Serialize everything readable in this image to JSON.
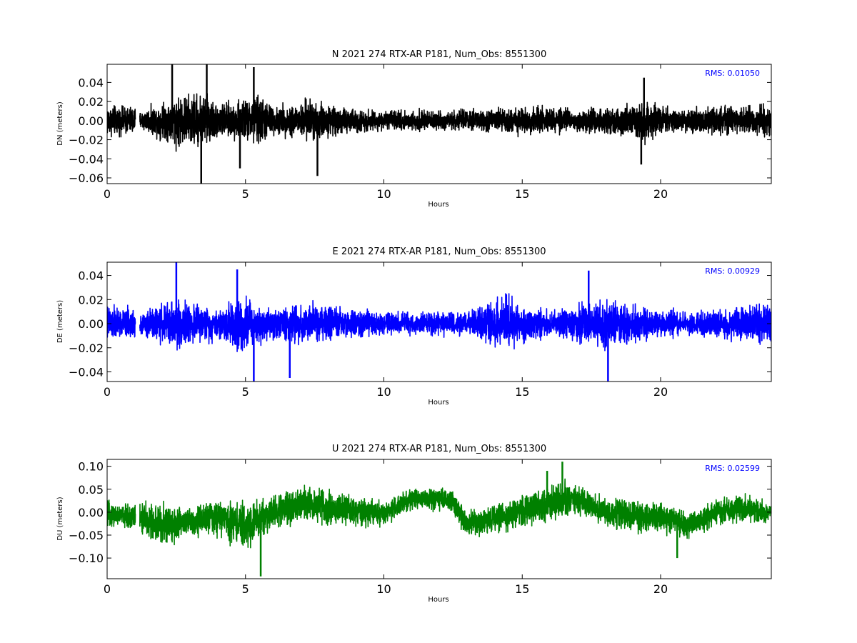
{
  "chart_data": [
    {
      "type": "line",
      "title": "N 2021 274 RTX-AR  P181, Num_Obs: 8551300",
      "xlabel": "Hours",
      "ylabel": "DN (meters)",
      "xlim": [
        0,
        24
      ],
      "ylim": [
        -0.066,
        0.059
      ],
      "xticks": [
        0,
        5,
        10,
        15,
        20
      ],
      "yticks": [
        -0.06,
        -0.04,
        -0.02,
        0.0,
        0.02,
        0.04
      ],
      "ytick_labels": [
        "−0.06",
        "−0.04",
        "−0.02",
        "0.00",
        "0.02",
        "0.04"
      ],
      "grid": false,
      "legend": "none",
      "color": "#000000",
      "annotation": "RMS:  0.01050",
      "annotation_color": "#0000ff",
      "gap": [
        1.02,
        1.18
      ],
      "amplitude_envelope": {
        "x": [
          0,
          0.5,
          1.0,
          1.2,
          2.0,
          2.5,
          3.0,
          3.5,
          4.0,
          4.5,
          5.0,
          5.5,
          6.0,
          7.0,
          7.5,
          8.0,
          9.0,
          10.0,
          11.0,
          12.0,
          13.0,
          14.0,
          15.0,
          16.0,
          17.0,
          18.0,
          19.0,
          19.5,
          20.0,
          21.0,
          22.0,
          23.0,
          24.0
        ],
        "y": [
          0.022,
          0.018,
          0.02,
          0.012,
          0.024,
          0.035,
          0.034,
          0.038,
          0.022,
          0.024,
          0.028,
          0.036,
          0.018,
          0.024,
          0.032,
          0.02,
          0.016,
          0.012,
          0.014,
          0.012,
          0.014,
          0.016,
          0.018,
          0.018,
          0.014,
          0.018,
          0.02,
          0.026,
          0.018,
          0.016,
          0.018,
          0.02,
          0.02
        ]
      },
      "extremes": [
        [
          2.35,
          0.06
        ],
        [
          3.4,
          -0.066
        ],
        [
          3.6,
          0.06
        ],
        [
          4.8,
          -0.05
        ],
        [
          5.3,
          0.056
        ],
        [
          7.6,
          -0.058
        ],
        [
          19.3,
          -0.046
        ],
        [
          19.4,
          0.045
        ]
      ]
    },
    {
      "type": "line",
      "title": "E 2021 274 RTX-AR  P181, Num_Obs: 8551300",
      "xlabel": "Hours",
      "ylabel": "DE (meters)",
      "xlim": [
        0,
        24
      ],
      "ylim": [
        -0.048,
        0.051
      ],
      "xticks": [
        0,
        5,
        10,
        15,
        20
      ],
      "yticks": [
        -0.04,
        -0.02,
        0.0,
        0.02,
        0.04
      ],
      "ytick_labels": [
        "−0.04",
        "−0.02",
        "0.00",
        "0.02",
        "0.04"
      ],
      "grid": false,
      "legend": "none",
      "color": "#0000ff",
      "annotation": "RMS:  0.00929",
      "annotation_color": "#0000ff",
      "gap": [
        1.02,
        1.18
      ],
      "amplitude_envelope": {
        "x": [
          0,
          0.5,
          1.0,
          1.2,
          2.0,
          2.5,
          3.0,
          3.5,
          4.0,
          4.5,
          5.0,
          5.5,
          6.0,
          7.0,
          8.0,
          9.0,
          10.0,
          11.0,
          12.0,
          13.0,
          14.0,
          14.5,
          15.0,
          16.0,
          17.0,
          18.0,
          19.0,
          20.0,
          21.0,
          22.0,
          23.0,
          24.0
        ],
        "y": [
          0.02,
          0.016,
          0.016,
          0.012,
          0.02,
          0.028,
          0.02,
          0.018,
          0.016,
          0.026,
          0.028,
          0.02,
          0.016,
          0.022,
          0.018,
          0.016,
          0.012,
          0.012,
          0.012,
          0.012,
          0.024,
          0.028,
          0.018,
          0.014,
          0.022,
          0.026,
          0.018,
          0.014,
          0.012,
          0.014,
          0.018,
          0.02
        ]
      },
      "extremes": [
        [
          2.5,
          0.052
        ],
        [
          4.7,
          0.045
        ],
        [
          5.3,
          -0.048
        ],
        [
          6.6,
          -0.045
        ],
        [
          17.4,
          0.044
        ],
        [
          18.1,
          -0.048
        ]
      ]
    },
    {
      "type": "line",
      "title": "U 2021 274 RTX-AR  P181, Num_Obs: 8551300",
      "xlabel": "Hours",
      "ylabel": "DU (meters)",
      "xlim": [
        0,
        24
      ],
      "ylim": [
        -0.145,
        0.115
      ],
      "xticks": [
        0,
        5,
        10,
        15,
        20
      ],
      "yticks": [
        -0.1,
        -0.05,
        0.0,
        0.05,
        0.1
      ],
      "ytick_labels": [
        "−0.10",
        "−0.05",
        "0.00",
        "0.05",
        "0.10"
      ],
      "grid": false,
      "legend": "none",
      "color": "#008000",
      "annotation": "RMS:  0.02599",
      "annotation_color": "#0000ff",
      "gap": [
        1.02,
        1.18
      ],
      "amplitude_envelope": {
        "x": [
          0,
          0.5,
          1.0,
          1.2,
          2.0,
          2.5,
          3.0,
          4.0,
          5.0,
          5.5,
          6.0,
          7.0,
          8.0,
          9.0,
          10.0,
          11.0,
          12.0,
          13.0,
          14.0,
          15.0,
          16.0,
          16.5,
          17.0,
          18.0,
          19.0,
          20.0,
          21.0,
          22.0,
          23.0,
          24.0
        ],
        "y": [
          0.035,
          0.03,
          0.04,
          0.05,
          0.06,
          0.05,
          0.04,
          0.05,
          0.06,
          0.06,
          0.045,
          0.05,
          0.045,
          0.04,
          0.035,
          0.03,
          0.03,
          0.035,
          0.04,
          0.045,
          0.05,
          0.055,
          0.045,
          0.04,
          0.045,
          0.04,
          0.035,
          0.04,
          0.035,
          0.03
        ]
      },
      "trend": {
        "x": [
          0,
          1,
          2,
          3,
          4,
          5,
          6,
          7,
          8,
          9,
          10,
          11,
          12,
          12.5,
          13,
          14,
          15,
          16,
          17,
          18,
          19,
          20,
          21,
          22,
          23,
          24
        ],
        "y": [
          -0.005,
          -0.01,
          -0.03,
          -0.02,
          -0.01,
          -0.03,
          0.0,
          0.02,
          0.01,
          0.0,
          -0.005,
          0.03,
          0.03,
          0.02,
          -0.03,
          -0.01,
          0.0,
          0.02,
          0.03,
          0.0,
          -0.01,
          -0.01,
          -0.03,
          0.0,
          0.01,
          0.0
        ]
      },
      "extremes": [
        [
          5.55,
          -0.14
        ],
        [
          16.45,
          0.11
        ],
        [
          15.9,
          0.09
        ],
        [
          20.6,
          -0.1
        ]
      ]
    }
  ]
}
